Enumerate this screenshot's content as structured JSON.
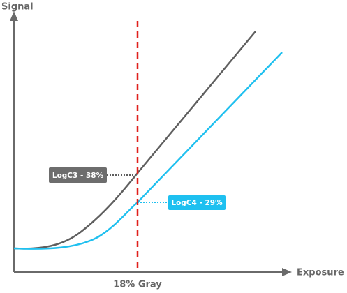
{
  "axes": {
    "y_label": "Signal",
    "x_label": "Exposure"
  },
  "marker": {
    "label": "18% Gray"
  },
  "curves": [
    {
      "label": "LogC3 - 38%"
    },
    {
      "label": "LogC4 - 29%"
    }
  ]
}
